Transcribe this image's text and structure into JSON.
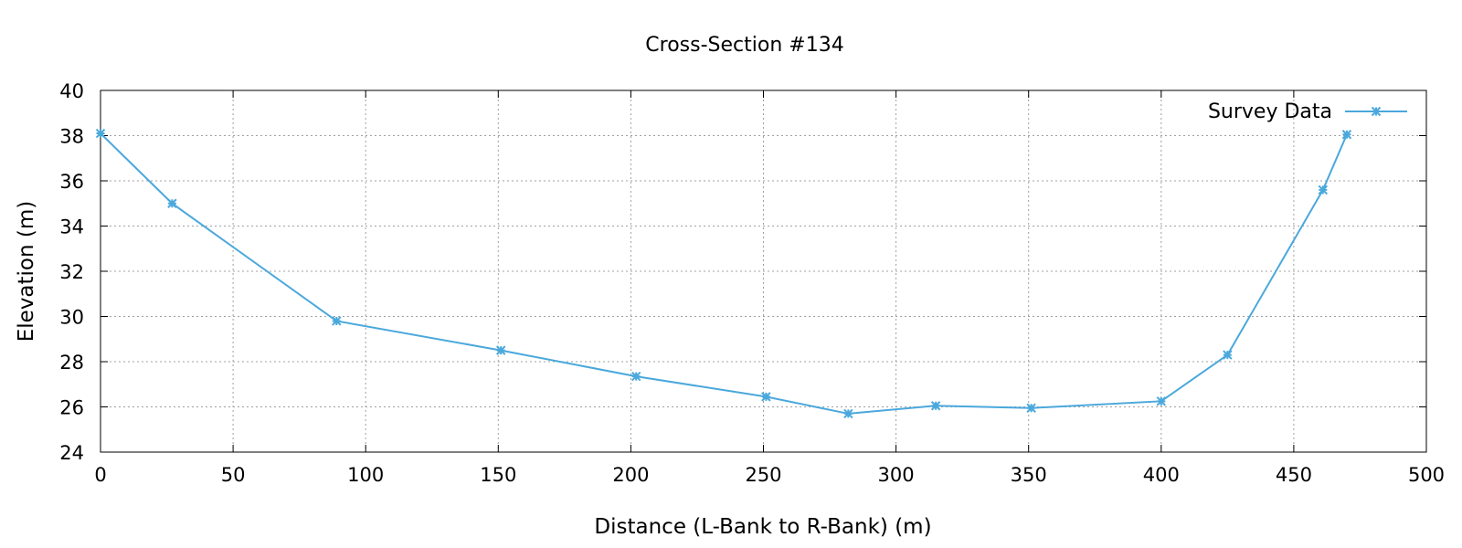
{
  "chart_data": {
    "type": "line",
    "title": "Cross-Section #134",
    "xlabel": "Distance (L-Bank to R-Bank) (m)",
    "ylabel": "Elevation (m)",
    "xlim": [
      0,
      500
    ],
    "ylim": [
      24,
      40
    ],
    "xticks": [
      0,
      50,
      100,
      150,
      200,
      250,
      300,
      350,
      400,
      450,
      500
    ],
    "yticks": [
      24,
      26,
      28,
      30,
      32,
      34,
      36,
      38,
      40
    ],
    "grid": true,
    "legend_position": "top-right",
    "series": [
      {
        "name": "Survey Data",
        "color": "#4aa8dc",
        "marker": "asterisk",
        "x": [
          0,
          27,
          89,
          151,
          202,
          251,
          282,
          315,
          351,
          400,
          425,
          461,
          470
        ],
        "y": [
          38.1,
          35.0,
          29.8,
          28.5,
          27.35,
          26.45,
          25.7,
          26.05,
          25.95,
          26.25,
          28.3,
          35.6,
          38.05
        ]
      }
    ]
  }
}
